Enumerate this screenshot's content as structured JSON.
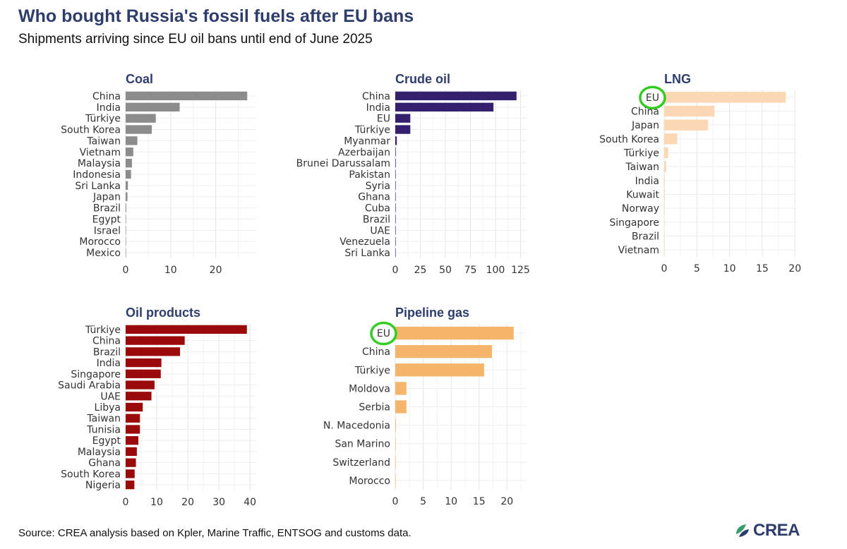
{
  "title": "Who bought Russia's fossil fuels after EU bans",
  "subtitle": "Shipments arriving since EU oil bans until end of June 2025",
  "source": "Source: CREA analysis based on Kpler, Marine Traffic, ENTSOG and customs data.",
  "logo": {
    "text": "CREA",
    "icon": "crea-leaf-icon",
    "colors": [
      "#2e3d6b",
      "#3a9b6f",
      "#8cc63f"
    ]
  },
  "highlight_color": "#33cc22",
  "chart_data": [
    {
      "type": "bar",
      "orientation": "horizontal",
      "title": "Coal",
      "color": "#8c8c8c",
      "categories": [
        "China",
        "India",
        "Türkiye",
        "South Korea",
        "Taiwan",
        "Vietnam",
        "Malaysia",
        "Indonesia",
        "Sri Lanka",
        "Japan",
        "Brazil",
        "Egypt",
        "Israel",
        "Morocco",
        "Mexico"
      ],
      "values": [
        27,
        12,
        6.7,
        5.8,
        2.6,
        1.7,
        1.4,
        1.2,
        0.5,
        0.4,
        0.15,
        0.1,
        0.05,
        0.03,
        0.02
      ],
      "xlim": [
        0,
        29
      ],
      "xticks": [
        0,
        10,
        20
      ],
      "highlight": []
    },
    {
      "type": "bar",
      "orientation": "horizontal",
      "title": "Crude oil",
      "color": "#34206e",
      "categories": [
        "China",
        "India",
        "EU",
        "Türkiye",
        "Myanmar",
        "Azerbaijan",
        "Brunei Darussalam",
        "Pakistan",
        "Syria",
        "Ghana",
        "Cuba",
        "Brazil",
        "UAE",
        "Venezuela",
        "Sri Lanka"
      ],
      "values": [
        121,
        98,
        15,
        15,
        1.5,
        0.5,
        0.5,
        0.4,
        0.3,
        0.3,
        0.2,
        0.2,
        0.2,
        0.1,
        0.1
      ],
      "xlim": [
        0,
        131
      ],
      "xticks": [
        0,
        25,
        50,
        75,
        100,
        125
      ],
      "highlight": []
    },
    {
      "type": "bar",
      "orientation": "horizontal",
      "title": "LNG",
      "color": "#fbd7b3",
      "categories": [
        "EU",
        "China",
        "Japan",
        "South Korea",
        "Türkiye",
        "Taiwan",
        "India",
        "Kuwait",
        "Norway",
        "Singapore",
        "Brazil",
        "Vietnam"
      ],
      "values": [
        18.6,
        7.7,
        6.7,
        2.0,
        0.6,
        0.3,
        0.1,
        0.1,
        0.05,
        0.05,
        0.03,
        0.02
      ],
      "xlim": [
        0,
        20.3
      ],
      "xticks": [
        0,
        5,
        10,
        15,
        20
      ],
      "highlight": [
        "EU"
      ]
    },
    {
      "type": "bar",
      "orientation": "horizontal",
      "title": "Oil products",
      "color": "#9b0a0a",
      "categories": [
        "Türkiye",
        "China",
        "Brazil",
        "India",
        "Singapore",
        "Saudi Arabia",
        "UAE",
        "Libya",
        "Taiwan",
        "Tunisia",
        "Egypt",
        "Malaysia",
        "Ghana",
        "South Korea",
        "Nigeria"
      ],
      "values": [
        39,
        19,
        17.5,
        11.5,
        11.3,
        9.3,
        8.3,
        5.5,
        4.6,
        4.6,
        4.1,
        3.6,
        3.3,
        2.9,
        2.8
      ],
      "xlim": [
        0,
        42
      ],
      "xticks": [
        0,
        10,
        20,
        30,
        40
      ],
      "highlight": []
    },
    {
      "type": "bar",
      "orientation": "horizontal",
      "title": "Pipeline gas",
      "color": "#f4b56a",
      "categories": [
        "EU",
        "China",
        "Türkiye",
        "Moldova",
        "Serbia",
        "N. Macedonia",
        "San Marino",
        "Switzerland",
        "Morocco"
      ],
      "values": [
        21.2,
        17.3,
        15.9,
        2.0,
        2.0,
        0.1,
        0.05,
        0.05,
        0.03
      ],
      "xlim": [
        0,
        23.5
      ],
      "xticks": [
        0,
        5,
        10,
        15,
        20
      ],
      "highlight": [
        "EU"
      ]
    }
  ]
}
